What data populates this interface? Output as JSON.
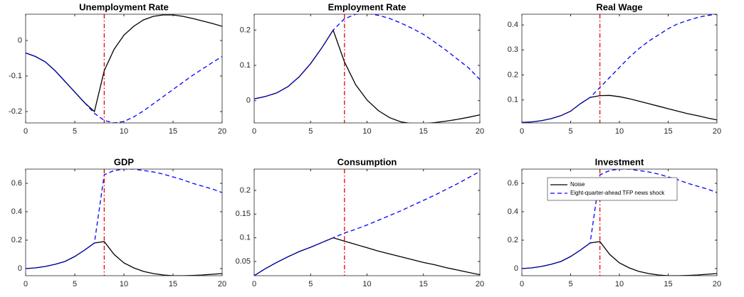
{
  "chart_data": [
    {
      "type": "line",
      "title": "Unemployment Rate",
      "x": [
        0,
        1,
        2,
        3,
        4,
        5,
        6,
        7,
        8,
        9,
        10,
        11,
        12,
        13,
        14,
        15,
        16,
        17,
        18,
        19,
        20
      ],
      "xlim": [
        0,
        20
      ],
      "xticks": [
        0,
        5,
        10,
        15,
        20
      ],
      "ylim": [
        -0.232,
        0.074
      ],
      "yticks": [
        -0.2,
        -0.1,
        0
      ],
      "vline": 8,
      "vline_color": "#e00000",
      "series": [
        {
          "color": "#000000",
          "line_style": "solid",
          "values": [
            -0.035,
            -0.045,
            -0.06,
            -0.085,
            -0.115,
            -0.145,
            -0.175,
            -0.2,
            -0.085,
            -0.025,
            0.015,
            0.04,
            0.058,
            0.068,
            0.072,
            0.072,
            0.068,
            0.062,
            0.055,
            0.048,
            0.04
          ]
        },
        {
          "color": "#0000ff",
          "line_style": "dashed",
          "values": [
            -0.035,
            -0.045,
            -0.06,
            -0.085,
            -0.115,
            -0.145,
            -0.175,
            -0.205,
            -0.225,
            -0.232,
            -0.228,
            -0.215,
            -0.198,
            -0.178,
            -0.158,
            -0.138,
            -0.118,
            -0.098,
            -0.08,
            -0.062,
            -0.045
          ]
        }
      ]
    },
    {
      "type": "line",
      "title": "Employment Rate",
      "x": [
        0,
        1,
        2,
        3,
        4,
        5,
        6,
        7,
        8,
        9,
        10,
        11,
        12,
        13,
        14,
        15,
        16,
        17,
        18,
        19,
        20
      ],
      "xlim": [
        0,
        20
      ],
      "xticks": [
        0,
        5,
        10,
        15,
        20
      ],
      "ylim": [
        -0.063,
        0.245
      ],
      "yticks": [
        0,
        0.1,
        0.2
      ],
      "vline": 8,
      "vline_color": "#e00000",
      "series": [
        {
          "color": "#000000",
          "line_style": "solid",
          "values": [
            0.005,
            0.012,
            0.022,
            0.04,
            0.068,
            0.105,
            0.15,
            0.2,
            0.11,
            0.045,
            0.002,
            -0.028,
            -0.048,
            -0.06,
            -0.065,
            -0.065,
            -0.062,
            -0.058,
            -0.053,
            -0.047,
            -0.04
          ]
        },
        {
          "color": "#0000ff",
          "line_style": "dashed",
          "values": [
            0.005,
            0.012,
            0.022,
            0.04,
            0.068,
            0.105,
            0.15,
            0.2,
            0.232,
            0.245,
            0.247,
            0.242,
            0.233,
            0.22,
            0.205,
            0.188,
            0.166,
            0.143,
            0.118,
            0.093,
            0.06
          ]
        }
      ]
    },
    {
      "type": "line",
      "title": "Real Wage",
      "x": [
        0,
        1,
        2,
        3,
        4,
        5,
        6,
        7,
        8,
        9,
        10,
        11,
        12,
        13,
        14,
        15,
        16,
        17,
        18,
        19,
        20
      ],
      "xlim": [
        0,
        20
      ],
      "xticks": [
        0,
        5,
        10,
        15,
        20
      ],
      "ylim": [
        0.008,
        0.443
      ],
      "yticks": [
        0.1,
        0.2,
        0.3,
        0.4
      ],
      "vline": 8,
      "vline_color": "#e00000",
      "series": [
        {
          "color": "#000000",
          "line_style": "solid",
          "values": [
            0.01,
            0.012,
            0.017,
            0.025,
            0.037,
            0.055,
            0.085,
            0.11,
            0.117,
            0.118,
            0.113,
            0.105,
            0.095,
            0.085,
            0.075,
            0.065,
            0.055,
            0.045,
            0.037,
            0.028,
            0.02
          ]
        },
        {
          "color": "#0000ff",
          "line_style": "dashed",
          "values": [
            0.01,
            0.012,
            0.017,
            0.025,
            0.037,
            0.055,
            0.085,
            0.11,
            0.15,
            0.19,
            0.23,
            0.27,
            0.305,
            0.335,
            0.36,
            0.385,
            0.405,
            0.418,
            0.43,
            0.438,
            0.443
          ]
        }
      ]
    },
    {
      "type": "line",
      "title": "GDP",
      "x": [
        0,
        1,
        2,
        3,
        4,
        5,
        6,
        7,
        8,
        9,
        10,
        11,
        12,
        13,
        14,
        15,
        16,
        17,
        18,
        19,
        20
      ],
      "xlim": [
        0,
        20
      ],
      "xticks": [
        0,
        5,
        10,
        15,
        20
      ],
      "ylim": [
        -0.05,
        0.7
      ],
      "yticks": [
        0,
        0.2,
        0.4,
        0.6
      ],
      "vline": 8,
      "vline_color": "#e00000",
      "series": [
        {
          "color": "#000000",
          "line_style": "solid",
          "values": [
            0,
            0.005,
            0.015,
            0.03,
            0.05,
            0.085,
            0.13,
            0.18,
            0.19,
            0.1,
            0.04,
            0.005,
            -0.02,
            -0.035,
            -0.045,
            -0.05,
            -0.05,
            -0.048,
            -0.045,
            -0.04,
            -0.035
          ]
        },
        {
          "color": "#0000ff",
          "line_style": "dashed",
          "values": [
            0,
            0.005,
            0.015,
            0.03,
            0.05,
            0.085,
            0.13,
            0.18,
            0.66,
            0.69,
            0.7,
            0.7,
            0.69,
            0.68,
            0.665,
            0.645,
            0.625,
            0.6,
            0.58,
            0.56,
            0.535
          ]
        }
      ]
    },
    {
      "type": "line",
      "title": "Consumption",
      "x": [
        0,
        1,
        2,
        3,
        4,
        5,
        6,
        7,
        8,
        9,
        10,
        11,
        12,
        13,
        14,
        15,
        16,
        17,
        18,
        19,
        20
      ],
      "xlim": [
        0,
        20
      ],
      "xticks": [
        0,
        5,
        10,
        15,
        20
      ],
      "ylim": [
        0.02,
        0.245
      ],
      "yticks": [
        0.05,
        0.1,
        0.15,
        0.2
      ],
      "vline": 8,
      "vline_color": "#e00000",
      "series": [
        {
          "color": "#000000",
          "line_style": "solid",
          "values": [
            0.02,
            0.035,
            0.048,
            0.06,
            0.071,
            0.08,
            0.09,
            0.1,
            0.093,
            0.086,
            0.079,
            0.072,
            0.066,
            0.06,
            0.054,
            0.048,
            0.043,
            0.037,
            0.032,
            0.027,
            0.022
          ]
        },
        {
          "color": "#0000ff",
          "line_style": "dashed",
          "values": [
            0.02,
            0.035,
            0.048,
            0.06,
            0.071,
            0.08,
            0.09,
            0.1,
            0.11,
            0.118,
            0.127,
            0.137,
            0.147,
            0.157,
            0.168,
            0.179,
            0.19,
            0.202,
            0.214,
            0.227,
            0.24
          ]
        }
      ]
    },
    {
      "type": "line",
      "title": "Investment",
      "x": [
        0,
        1,
        2,
        3,
        4,
        5,
        6,
        7,
        8,
        9,
        10,
        11,
        12,
        13,
        14,
        15,
        16,
        17,
        18,
        19,
        20
      ],
      "xlim": [
        0,
        20
      ],
      "xticks": [
        0,
        5,
        10,
        15,
        20
      ],
      "ylim": [
        -0.05,
        0.7
      ],
      "yticks": [
        0,
        0.2,
        0.4,
        0.6
      ],
      "vline": 8,
      "vline_color": "#e00000",
      "legend": "upper left",
      "series": [
        {
          "name": "Noise",
          "color": "#000000",
          "line_style": "solid",
          "values": [
            0,
            0.005,
            0.015,
            0.03,
            0.05,
            0.085,
            0.13,
            0.18,
            0.19,
            0.1,
            0.04,
            0.005,
            -0.02,
            -0.035,
            -0.045,
            -0.05,
            -0.05,
            -0.048,
            -0.045,
            -0.04,
            -0.035
          ]
        },
        {
          "name": "Eight-quarter-ahead TFP news shock",
          "color": "#0000ff",
          "line_style": "dashed",
          "values": [
            0,
            0.005,
            0.015,
            0.03,
            0.05,
            0.085,
            0.13,
            0.18,
            0.66,
            0.69,
            0.7,
            0.7,
            0.69,
            0.68,
            0.665,
            0.645,
            0.625,
            0.6,
            0.58,
            0.56,
            0.535
          ]
        }
      ]
    }
  ]
}
